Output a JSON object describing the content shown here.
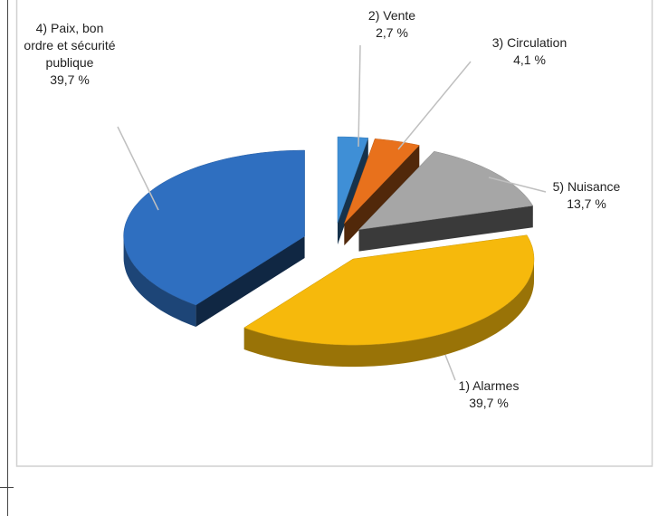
{
  "chart_data": {
    "type": "pie3d",
    "categories": [
      "2) Vente",
      "3) Circulation",
      "5) Nuisance",
      "1) Alarmes",
      "4) Paix, bon ordre et sécurité publique"
    ],
    "values": [
      2.7,
      4.1,
      13.7,
      39.7,
      39.7
    ],
    "value_labels": [
      "2,7 %",
      "4,1 %",
      "13,7 %",
      "39,7 %",
      "39,7 %"
    ],
    "colors": [
      "#3f8fd6",
      "#e8711c",
      "#a6a6a6",
      "#f6b90c",
      "#2f6fc0"
    ]
  }
}
